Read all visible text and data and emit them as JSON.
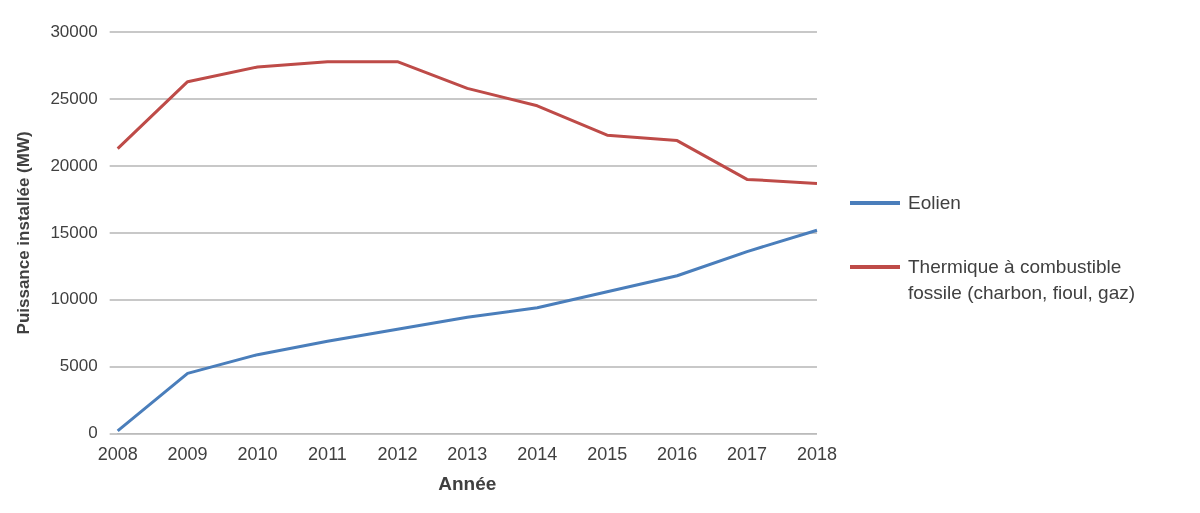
{
  "chart_data": {
    "type": "line",
    "xlabel": "Année",
    "ylabel": "Puissance installée (MW)",
    "categories": [
      "2008",
      "2009",
      "2010",
      "2011",
      "2012",
      "2013",
      "2014",
      "2015",
      "2016",
      "2017",
      "2018"
    ],
    "series": [
      {
        "name": "Eolien",
        "color": "#4a7ebb",
        "values": [
          200,
          4500,
          5900,
          6900,
          7800,
          8700,
          9400,
          10600,
          11800,
          13600,
          15200
        ]
      },
      {
        "name": "Thermique à combustible fossile (charbon, fioul, gaz)",
        "color": "#be4b48",
        "values": [
          21300,
          26300,
          27400,
          27800,
          27800,
          25800,
          24500,
          22300,
          21900,
          19000,
          18700
        ]
      }
    ],
    "ylim": [
      0,
      30000
    ],
    "yticks": [
      0,
      5000,
      10000,
      15000,
      20000,
      25000,
      30000
    ],
    "grid": "y",
    "legend": "right",
    "marker": "none",
    "line_style": "solid"
  }
}
